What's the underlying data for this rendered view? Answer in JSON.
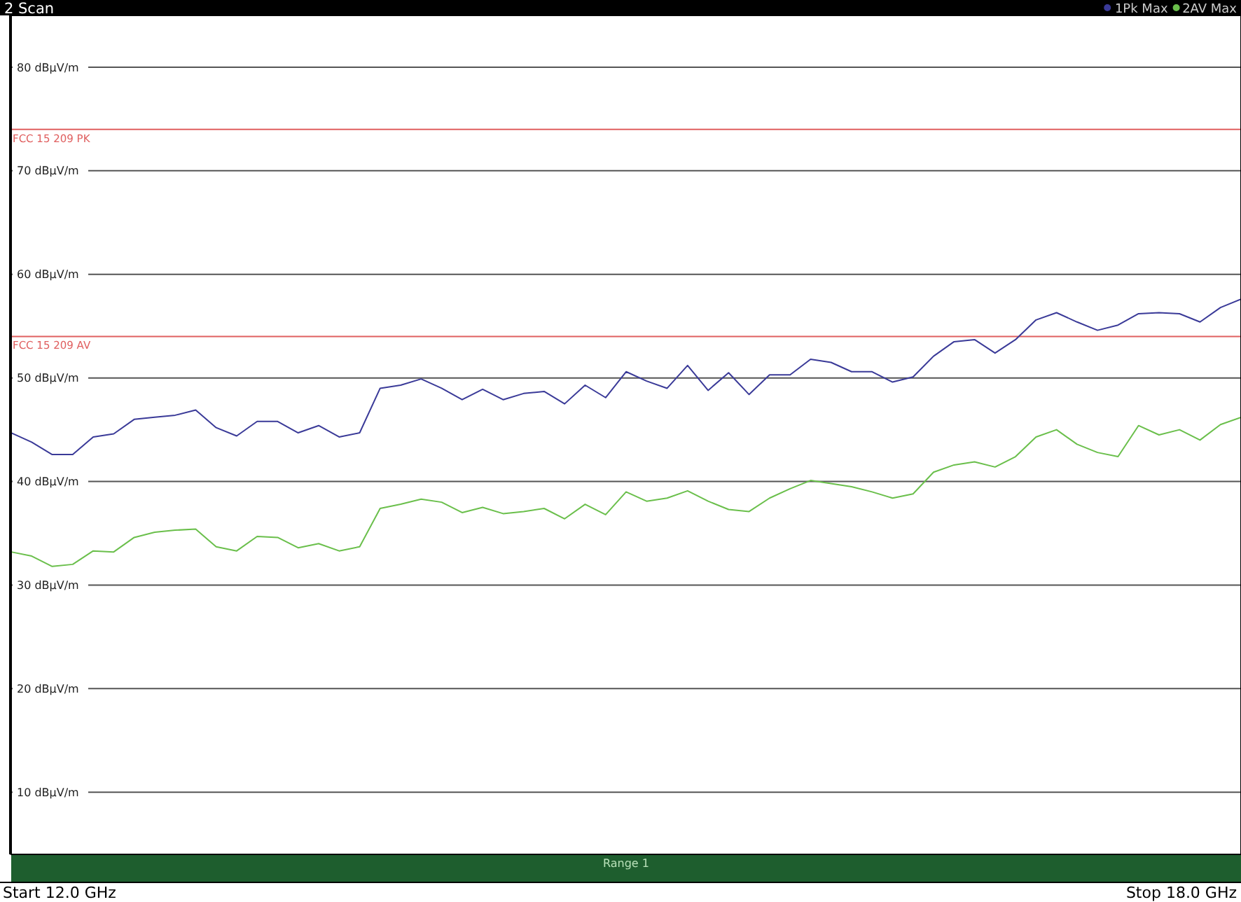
{
  "chart_data": {
    "type": "line",
    "title": "2 Scan",
    "annotations": [
      "Range 1",
      "Start 12.0 GHz",
      "Stop 18.0 GHz"
    ],
    "categories": [
      null,
      null,
      null,
      null,
      null,
      null,
      null,
      null,
      null,
      null,
      null,
      null,
      null,
      null,
      null,
      null,
      null,
      null,
      null,
      null,
      null,
      null,
      null,
      null,
      null,
      null,
      null,
      null,
      null,
      null,
      null,
      null,
      null,
      null,
      null,
      null,
      null,
      null,
      null,
      null,
      null,
      null,
      null,
      null,
      null,
      null,
      null,
      null,
      null,
      null,
      null,
      null,
      null,
      null,
      null,
      null,
      null,
      null,
      null,
      null,
      null
    ],
    "ylim": [
      4,
      85
    ],
    "yticks": [
      {
        "value": 10,
        "label": "10 dBµV/m"
      },
      {
        "value": 20,
        "label": "20 dBµV/m"
      },
      {
        "value": 30,
        "label": "30 dBµV/m"
      },
      {
        "value": 40,
        "label": "40 dBµV/m"
      },
      {
        "value": 50,
        "label": "50 dBµV/m"
      },
      {
        "value": 60,
        "label": "60 dBµV/m"
      },
      {
        "value": 70,
        "label": "70 dBµV/m"
      },
      {
        "value": 80,
        "label": "80 dBµV/m"
      }
    ],
    "grid": "y",
    "legend": "top right",
    "marker": "none",
    "line_style": "solid",
    "ref_lines": [
      {
        "axis": "y",
        "value": 74,
        "label": "FCC 15 209 PK",
        "color": "#e06060"
      },
      {
        "axis": "y",
        "value": 54,
        "label": "FCC 15 209 AV",
        "color": "#e06060"
      }
    ],
    "series": [
      {
        "name": "1Pk Max",
        "color": "#3a3a98",
        "values": [
          44.7,
          43.8,
          42.6,
          42.6,
          44.3,
          44.6,
          46.0,
          46.2,
          46.4,
          46.9,
          45.2,
          44.4,
          45.8,
          45.8,
          44.7,
          45.4,
          44.3,
          44.7,
          49.0,
          49.3,
          49.9,
          49.0,
          47.9,
          48.9,
          47.9,
          48.5,
          48.7,
          47.5,
          49.3,
          48.1,
          50.6,
          49.7,
          49.0,
          51.2,
          48.8,
          50.5,
          48.4,
          50.3,
          50.3,
          51.8,
          51.5,
          50.6,
          50.6,
          49.6,
          50.1,
          52.1,
          53.5,
          53.7,
          52.4,
          53.7,
          55.6,
          56.3,
          55.4,
          54.6,
          55.1,
          56.2,
          56.3,
          56.2,
          55.4,
          56.8,
          57.6
        ]
      },
      {
        "name": "2AV Max",
        "color": "#6abf4b",
        "values": [
          33.2,
          32.8,
          31.8,
          32.0,
          33.3,
          33.2,
          34.6,
          35.1,
          35.3,
          35.4,
          33.7,
          33.3,
          34.7,
          34.6,
          33.6,
          34.0,
          33.3,
          33.7,
          37.4,
          37.8,
          38.3,
          38.0,
          37.0,
          37.5,
          36.9,
          37.1,
          37.4,
          36.4,
          37.8,
          36.8,
          39.0,
          38.1,
          38.4,
          39.1,
          38.1,
          37.3,
          37.1,
          38.4,
          39.3,
          40.1,
          39.8,
          39.5,
          39.0,
          38.4,
          38.8,
          40.9,
          41.6,
          41.9,
          41.4,
          42.4,
          44.3,
          45.0,
          43.6,
          42.8,
          42.4,
          45.4,
          44.5,
          45.0,
          44.0,
          45.5,
          46.2
        ]
      }
    ]
  }
}
